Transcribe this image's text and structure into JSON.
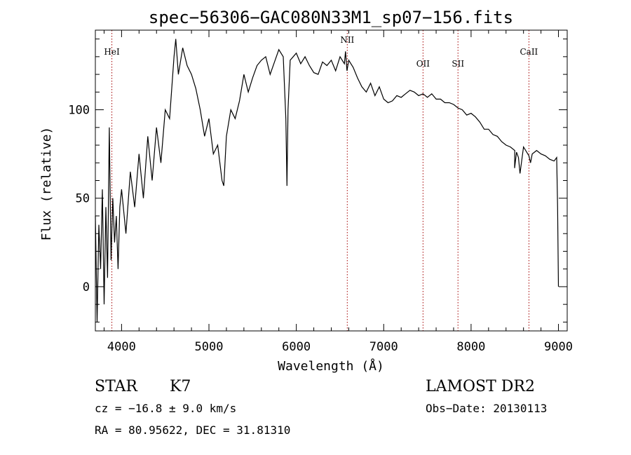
{
  "chart_data": {
    "type": "line",
    "title": "spec−56306−GAC080N33M1_sp07−156.fits",
    "xlabel": "Wavelength (Å)",
    "ylabel": "Flux (relative)",
    "xlim": [
      3700,
      9100
    ],
    "ylim": [
      -25,
      145
    ],
    "xticks": [
      4000,
      5000,
      6000,
      7000,
      8000,
      9000
    ],
    "yticks": [
      0,
      50,
      100
    ],
    "series": [
      {
        "x": [
          3700,
          3720,
          3740,
          3760,
          3780,
          3800,
          3820,
          3840,
          3860,
          3880,
          3900,
          3920,
          3940,
          3960,
          3980,
          4000,
          4050,
          4100,
          4150,
          4200,
          4250,
          4300,
          4350,
          4400,
          4450,
          4500,
          4550,
          4600,
          4620,
          4650,
          4700,
          4750,
          4800,
          4850,
          4900,
          4950,
          5000,
          5050,
          5100,
          5150,
          5170,
          5200,
          5250,
          5300,
          5350,
          5400,
          5450,
          5500,
          5550,
          5600,
          5650,
          5700,
          5750,
          5800,
          5850,
          5880,
          5893,
          5905,
          5930,
          6000,
          6050,
          6100,
          6150,
          6200,
          6250,
          6300,
          6350,
          6400,
          6450,
          6500,
          6550,
          6563,
          6580,
          6600,
          6650,
          6700,
          6750,
          6800,
          6850,
          6900,
          6950,
          7000,
          7050,
          7100,
          7150,
          7200,
          7250,
          7300,
          7350,
          7400,
          7450,
          7500,
          7550,
          7600,
          7650,
          7700,
          7750,
          7800,
          7850,
          7900,
          7950,
          8000,
          8050,
          8100,
          8150,
          8200,
          8250,
          8300,
          8350,
          8400,
          8450,
          8500,
          8498,
          8520,
          8542,
          8560,
          8600,
          8662,
          8680,
          8700,
          8750,
          8800,
          8850,
          8900,
          8950,
          8980,
          8990,
          9000
        ],
        "y": [
          40,
          -20,
          35,
          10,
          55,
          -10,
          45,
          5,
          90,
          15,
          50,
          25,
          40,
          10,
          45,
          55,
          30,
          65,
          45,
          75,
          50,
          85,
          60,
          90,
          70,
          100,
          95,
          130,
          140,
          120,
          135,
          125,
          120,
          112,
          100,
          85,
          95,
          75,
          80,
          60,
          57,
          85,
          100,
          95,
          105,
          120,
          110,
          118,
          125,
          128,
          130,
          120,
          127,
          134,
          130,
          95,
          57,
          100,
          128,
          132,
          126,
          130,
          125,
          121,
          120,
          127,
          125,
          128,
          122,
          130,
          126,
          133,
          122,
          128,
          124,
          118,
          113,
          110,
          115,
          108,
          113,
          106,
          104,
          105,
          108,
          107,
          109,
          111,
          110,
          108,
          109,
          107,
          109,
          106,
          106,
          104,
          104,
          103,
          101,
          100,
          97,
          98,
          96,
          93,
          89,
          89,
          86,
          85,
          82,
          80,
          79,
          77,
          67,
          76,
          73,
          64,
          79,
          74,
          70,
          75,
          77,
          75,
          74,
          72,
          71,
          73,
          45,
          0
        ]
      }
    ],
    "lines": [
      {
        "label": "HeI",
        "x": 3889
      },
      {
        "label": "NII",
        "x": 6583
      },
      {
        "label": "OII",
        "x": 7450
      },
      {
        "label": "SII",
        "x": 7850
      },
      {
        "label": "CaII",
        "x": 8662
      }
    ]
  },
  "info": {
    "class_label": "STAR",
    "subclass": "K7",
    "cz": "cz = −16.8 ± 9.0 km/s",
    "radec": "RA =  80.95622, DEC =  31.81310",
    "survey": "LAMOST DR2",
    "obs_date": "Obs−Date: 20130113"
  },
  "colors": {
    "spectrum": "#000000",
    "line_marker": "#a40000",
    "axes": "#000000"
  }
}
